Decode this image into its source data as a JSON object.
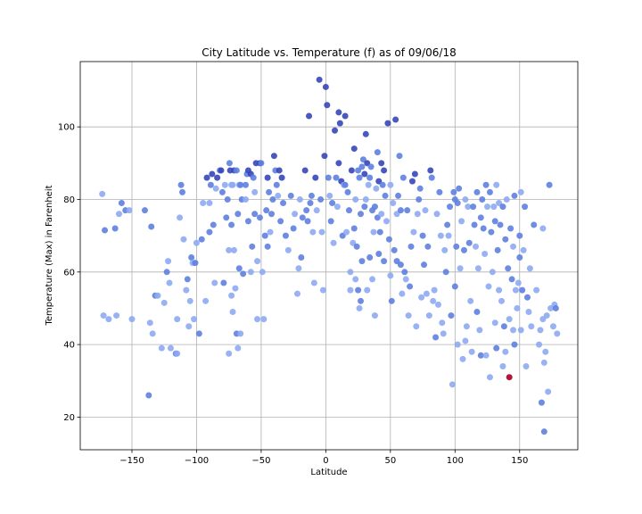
{
  "chart_data": {
    "type": "scatter",
    "title": "City Latitude vs. Temperature (f) as of 09/06/18",
    "xlabel": "Latitude",
    "ylabel": "Temperature (Max) in Farenheit",
    "xlim": [
      -190,
      195
    ],
    "ylim": [
      11,
      118
    ],
    "xticks": [
      -150,
      -100,
      -50,
      0,
      50,
      100,
      150
    ],
    "yticks": [
      20,
      40,
      60,
      80,
      100
    ],
    "grid": true,
    "colors": {
      "light": "#8eaaf2",
      "mid": "#5f7fe0",
      "dark": "#3647b8",
      "highlight": "#b0173a"
    },
    "points": [
      [
        -173,
        81.5
      ],
      [
        -172,
        48
      ],
      [
        -171,
        71.5
      ],
      [
        -168,
        47
      ],
      [
        -163,
        72
      ],
      [
        -162,
        48
      ],
      [
        -160,
        76
      ],
      [
        -158,
        79
      ],
      [
        -155,
        77
      ],
      [
        -152,
        77
      ],
      [
        -150,
        47
      ],
      [
        -140,
        77
      ],
      [
        -137,
        26
      ],
      [
        -136,
        46
      ],
      [
        -135,
        72.5
      ],
      [
        -134,
        43
      ],
      [
        -132,
        53.5
      ],
      [
        -130,
        53.5
      ],
      [
        -127,
        39
      ],
      [
        -125,
        51.5
      ],
      [
        -123,
        60
      ],
      [
        -122,
        63
      ],
      [
        -121,
        57
      ],
      [
        -120,
        39
      ],
      [
        -116,
        37.5
      ],
      [
        -115,
        37.5
      ],
      [
        -115,
        47
      ],
      [
        -113,
        75
      ],
      [
        -112,
        84
      ],
      [
        -111,
        82
      ],
      [
        -110,
        69
      ],
      [
        -108,
        55
      ],
      [
        -107,
        58
      ],
      [
        -106,
        45
      ],
      [
        -105,
        52
      ],
      [
        -104,
        64
      ],
      [
        -103,
        62.5
      ],
      [
        -102,
        47
      ],
      [
        -101,
        62.5
      ],
      [
        -100,
        68
      ],
      [
        -98,
        43
      ],
      [
        -96,
        69
      ],
      [
        -95,
        79
      ],
      [
        -93,
        52
      ],
      [
        -92,
        86
      ],
      [
        -90,
        79
      ],
      [
        -90,
        71
      ],
      [
        -89,
        84
      ],
      [
        -88,
        87
      ],
      [
        -87,
        73
      ],
      [
        -86,
        57
      ],
      [
        -85,
        83
      ],
      [
        -84,
        86
      ],
      [
        -82,
        88
      ],
      [
        -81,
        88
      ],
      [
        -80,
        82
      ],
      [
        -79,
        57
      ],
      [
        -78,
        84
      ],
      [
        -77,
        75
      ],
      [
        -76,
        80
      ],
      [
        -75,
        66
      ],
      [
        -74.5,
        90
      ],
      [
        -74,
        88
      ],
      [
        -73,
        84
      ],
      [
        -73,
        73
      ],
      [
        -73,
        53.5
      ],
      [
        -72,
        84
      ],
      [
        -72,
        49
      ],
      [
        -71,
        88
      ],
      [
        -71,
        66
      ],
      [
        -70,
        55.5
      ],
      [
        -69,
        88
      ],
      [
        -69,
        43
      ],
      [
        -68,
        76
      ],
      [
        -68,
        39
      ],
      [
        -67,
        84
      ],
      [
        -67,
        61
      ],
      [
        -66,
        84
      ],
      [
        -66,
        43
      ],
      [
        -65,
        80
      ],
      [
        -64,
        59.5
      ],
      [
        -62,
        80
      ],
      [
        -62,
        84
      ],
      [
        -61,
        87
      ],
      [
        -60,
        88
      ],
      [
        -60,
        74
      ],
      [
        -58,
        87
      ],
      [
        -58,
        60
      ],
      [
        -57,
        67
      ],
      [
        -56,
        86
      ],
      [
        -55,
        82
      ],
      [
        -55,
        76
      ],
      [
        -54,
        90
      ],
      [
        -53,
        63
      ],
      [
        -53,
        47
      ],
      [
        -51,
        75
      ],
      [
        -51,
        90
      ],
      [
        -50,
        90
      ],
      [
        -49,
        60
      ],
      [
        -48,
        47
      ],
      [
        -47,
        70
      ],
      [
        -46,
        77
      ],
      [
        -45,
        86
      ],
      [
        -45,
        67
      ],
      [
        -44,
        82
      ],
      [
        -43,
        71
      ],
      [
        -42,
        76
      ],
      [
        -41,
        80
      ],
      [
        -40,
        92
      ],
      [
        -39,
        88
      ],
      [
        -38,
        84
      ],
      [
        -37,
        81
      ],
      [
        -36,
        88
      ],
      [
        -35,
        74
      ],
      [
        -34,
        86
      ],
      [
        -33,
        79
      ],
      [
        -31,
        70
      ],
      [
        -29,
        66
      ],
      [
        -27,
        81
      ],
      [
        -25,
        72
      ],
      [
        -24,
        76
      ],
      [
        -22,
        54
      ],
      [
        -21,
        61
      ],
      [
        -20,
        80
      ],
      [
        -19,
        64
      ],
      [
        -18,
        75
      ],
      [
        -16,
        88
      ],
      [
        -15,
        77
      ],
      [
        -14,
        74
      ],
      [
        -13,
        103
      ],
      [
        -12,
        79
      ],
      [
        -11,
        81
      ],
      [
        -10,
        71
      ],
      [
        -9,
        57
      ],
      [
        -8,
        86
      ],
      [
        -7,
        77
      ],
      [
        -5,
        113
      ],
      [
        -4,
        80
      ],
      [
        -3,
        71
      ],
      [
        -2,
        55
      ],
      [
        -1,
        92
      ],
      [
        0,
        111
      ],
      [
        1,
        106
      ],
      [
        2,
        86
      ],
      [
        3,
        81
      ],
      [
        4,
        74
      ],
      [
        5,
        79
      ],
      [
        6,
        68
      ],
      [
        7,
        99
      ],
      [
        8,
        86
      ],
      [
        9,
        78
      ],
      [
        10,
        104
      ],
      [
        10,
        90
      ],
      [
        11,
        101
      ],
      [
        12,
        85
      ],
      [
        13,
        70
      ],
      [
        14,
        84
      ],
      [
        15,
        103
      ],
      [
        15,
        84
      ],
      [
        16,
        71
      ],
      [
        17,
        82
      ],
      [
        18,
        77
      ],
      [
        19,
        60
      ],
      [
        19,
        55
      ],
      [
        20,
        88
      ],
      [
        21,
        68
      ],
      [
        22,
        94
      ],
      [
        22,
        72
      ],
      [
        23,
        80
      ],
      [
        23,
        58
      ],
      [
        24,
        67
      ],
      [
        25,
        88
      ],
      [
        25,
        55
      ],
      [
        26,
        86
      ],
      [
        26,
        50
      ],
      [
        27,
        76
      ],
      [
        27,
        52
      ],
      [
        28,
        89
      ],
      [
        28,
        63
      ],
      [
        29,
        91
      ],
      [
        30,
        87
      ],
      [
        30,
        78
      ],
      [
        31,
        98
      ],
      [
        31,
        80
      ],
      [
        32,
        90
      ],
      [
        32,
        55
      ],
      [
        33,
        84
      ],
      [
        34,
        86
      ],
      [
        34,
        64
      ],
      [
        35,
        89
      ],
      [
        36,
        77
      ],
      [
        36,
        58
      ],
      [
        37,
        71
      ],
      [
        38,
        78
      ],
      [
        38,
        48
      ],
      [
        39,
        83
      ],
      [
        40,
        75
      ],
      [
        40,
        93
      ],
      [
        41,
        85
      ],
      [
        41,
        65
      ],
      [
        42,
        71
      ],
      [
        43,
        76
      ],
      [
        43,
        90
      ],
      [
        44,
        84
      ],
      [
        45,
        88
      ],
      [
        45,
        63
      ],
      [
        46,
        81
      ],
      [
        47,
        74
      ],
      [
        48,
        101
      ],
      [
        49,
        69
      ],
      [
        50,
        84
      ],
      [
        50,
        59
      ],
      [
        51,
        52
      ],
      [
        52,
        79
      ],
      [
        53,
        66
      ],
      [
        54,
        102
      ],
      [
        55,
        76
      ],
      [
        55,
        63
      ],
      [
        56,
        81
      ],
      [
        57,
        92
      ],
      [
        58,
        77
      ],
      [
        58,
        62
      ],
      [
        59,
        54
      ],
      [
        60,
        86
      ],
      [
        61,
        60
      ],
      [
        62,
        58
      ],
      [
        63,
        77
      ],
      [
        64,
        48
      ],
      [
        65,
        56
      ],
      [
        66,
        67
      ],
      [
        67,
        85
      ],
      [
        68,
        71
      ],
      [
        69,
        87
      ],
      [
        70,
        45
      ],
      [
        71,
        76
      ],
      [
        72,
        80
      ],
      [
        73,
        83
      ],
      [
        74,
        53
      ],
      [
        75,
        70
      ],
      [
        76,
        62
      ],
      [
        77,
        77
      ],
      [
        78,
        54
      ],
      [
        79,
        67
      ],
      [
        80,
        48
      ],
      [
        81,
        88
      ],
      [
        82,
        86
      ],
      [
        83,
        52
      ],
      [
        84,
        55
      ],
      [
        85,
        42
      ],
      [
        86,
        76
      ],
      [
        87,
        51
      ],
      [
        88,
        82
      ],
      [
        89,
        70
      ],
      [
        90,
        46
      ],
      [
        91,
        43
      ],
      [
        92,
        66
      ],
      [
        93,
        60
      ],
      [
        94,
        73
      ],
      [
        95,
        70
      ],
      [
        96,
        78
      ],
      [
        97,
        48
      ],
      [
        98,
        29
      ],
      [
        99,
        82
      ],
      [
        100,
        80
      ],
      [
        100,
        56
      ],
      [
        101,
        67
      ],
      [
        102,
        79
      ],
      [
        102,
        40
      ],
      [
        103,
        83
      ],
      [
        104,
        61
      ],
      [
        105,
        74
      ],
      [
        106,
        36
      ],
      [
        107,
        66
      ],
      [
        108,
        80
      ],
      [
        108,
        41
      ],
      [
        109,
        45
      ],
      [
        110,
        78
      ],
      [
        111,
        68
      ],
      [
        112,
        52
      ],
      [
        113,
        38
      ],
      [
        114,
        78
      ],
      [
        115,
        73
      ],
      [
        116,
        67
      ],
      [
        117,
        82
      ],
      [
        117,
        49
      ],
      [
        118,
        61
      ],
      [
        119,
        44
      ],
      [
        120,
        75
      ],
      [
        120,
        37
      ],
      [
        121,
        80
      ],
      [
        122,
        72
      ],
      [
        123,
        65
      ],
      [
        124,
        84
      ],
      [
        124,
        37
      ],
      [
        125,
        78
      ],
      [
        126,
        56
      ],
      [
        127,
        82
      ],
      [
        127,
        31
      ],
      [
        128,
        71
      ],
      [
        129,
        60
      ],
      [
        130,
        78
      ],
      [
        131,
        74
      ],
      [
        131,
        46
      ],
      [
        132,
        84
      ],
      [
        132,
        39
      ],
      [
        133,
        66
      ],
      [
        134,
        79
      ],
      [
        134,
        55
      ],
      [
        135,
        73
      ],
      [
        136,
        52
      ],
      [
        137,
        78
      ],
      [
        137,
        34
      ],
      [
        138,
        45
      ],
      [
        139,
        69
      ],
      [
        139,
        38
      ],
      [
        140,
        80
      ],
      [
        141,
        61
      ],
      [
        142,
        47
      ],
      [
        142,
        31
      ],
      [
        143,
        72
      ],
      [
        144,
        58
      ],
      [
        145,
        67
      ],
      [
        145,
        44
      ],
      [
        146,
        81
      ],
      [
        146,
        40
      ],
      [
        147,
        55
      ],
      [
        148,
        50
      ],
      [
        149,
        57
      ],
      [
        150,
        64
      ],
      [
        150,
        70
      ],
      [
        151,
        82
      ],
      [
        151,
        44
      ],
      [
        152,
        55
      ],
      [
        153,
        66
      ],
      [
        154,
        78
      ],
      [
        155,
        34
      ],
      [
        156,
        53
      ],
      [
        157,
        49
      ],
      [
        158,
        61
      ],
      [
        159,
        45
      ],
      [
        161,
        73
      ],
      [
        163,
        55
      ],
      [
        165,
        40
      ],
      [
        166,
        44
      ],
      [
        167,
        24
      ],
      [
        168,
        72
      ],
      [
        168,
        47
      ],
      [
        169,
        35
      ],
      [
        169,
        16
      ],
      [
        170,
        38
      ],
      [
        171,
        48
      ],
      [
        172,
        27
      ],
      [
        173,
        84
      ],
      [
        174,
        50
      ],
      [
        176,
        45
      ],
      [
        177,
        51
      ],
      [
        178,
        50
      ],
      [
        179,
        43
      ],
      [
        -75,
        37.5
      ]
    ],
    "point_shades": "light",
    "highlight_index": 318
  }
}
